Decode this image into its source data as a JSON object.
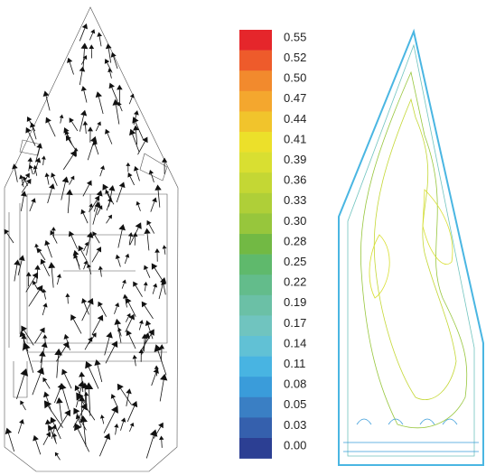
{
  "colorbar": {
    "labels": [
      "0.55",
      "0.52",
      "0.50",
      "0.47",
      "0.44",
      "0.41",
      "0.39",
      "0.36",
      "0.33",
      "0.30",
      "0.28",
      "0.25",
      "0.22",
      "0.19",
      "0.17",
      "0.14",
      "0.11",
      "0.08",
      "0.05",
      "0.03",
      "0.00"
    ],
    "colors": [
      "#e5262b",
      "#ee5b2b",
      "#f28a2d",
      "#f4a72e",
      "#f1c42c",
      "#ece02a",
      "#d9df31",
      "#c4d734",
      "#afcf38",
      "#97c63c",
      "#72b944",
      "#5fb96c",
      "#63bc8b",
      "#6bc0a6",
      "#70c4bf",
      "#61c1d5",
      "#48b4e2",
      "#3a9cda",
      "#3a7fc4",
      "#3560ad",
      "#2c3f93"
    ]
  }
}
